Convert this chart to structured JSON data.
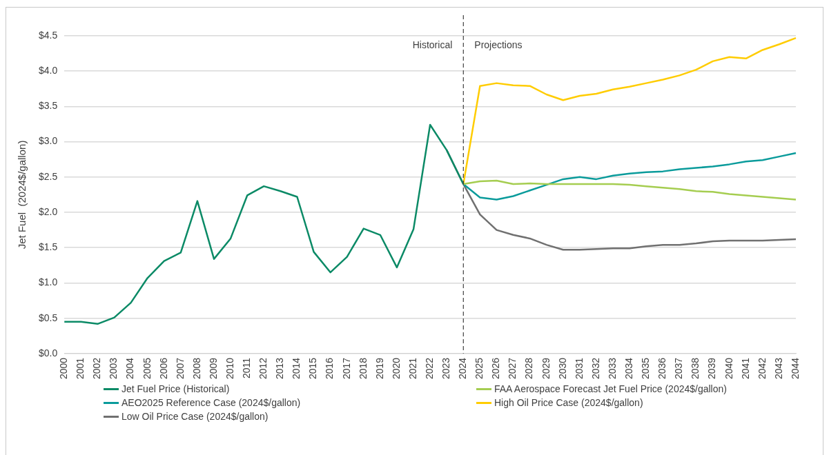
{
  "chart_data": {
    "type": "line",
    "ylabel": "Jet Fuel  (2024$/gallon)",
    "categories": [
      "2000",
      "2001",
      "2002",
      "2003",
      "2004",
      "2005",
      "2006",
      "2007",
      "2008",
      "2009",
      "2010",
      "2011",
      "2012",
      "2013",
      "2014",
      "2015",
      "2016",
      "2017",
      "2018",
      "2019",
      "2020",
      "2021",
      "2022",
      "2023",
      "2024",
      "2025",
      "2026",
      "2027",
      "2028",
      "2029",
      "2030",
      "2031",
      "2032",
      "2033",
      "2034",
      "2035",
      "2036",
      "2037",
      "2038",
      "2039",
      "2040",
      "2041",
      "2042",
      "2043",
      "2044"
    ],
    "series": [
      {
        "name": "Jet Fuel Price (Historical)",
        "color": "#0b8a66",
        "values": [
          0.45,
          0.45,
          0.42,
          0.51,
          0.72,
          1.07,
          1.31,
          1.43,
          2.16,
          1.34,
          1.63,
          2.24,
          2.37,
          2.3,
          2.22,
          1.44,
          1.15,
          1.37,
          1.77,
          1.68,
          1.22,
          1.76,
          3.24,
          2.88,
          2.4,
          null,
          null,
          null,
          null,
          null,
          null,
          null,
          null,
          null,
          null,
          null,
          null,
          null,
          null,
          null,
          null,
          null,
          null,
          null,
          null
        ]
      },
      {
        "name": "FAA Aerospace Forecast Jet Fuel Price (2024$/gallon)",
        "color": "#a5cd50",
        "values": [
          null,
          null,
          null,
          null,
          null,
          null,
          null,
          null,
          null,
          null,
          null,
          null,
          null,
          null,
          null,
          null,
          null,
          null,
          null,
          null,
          null,
          null,
          null,
          null,
          2.4,
          2.44,
          2.45,
          2.4,
          2.41,
          2.4,
          2.4,
          2.4,
          2.4,
          2.4,
          2.39,
          2.37,
          2.35,
          2.33,
          2.3,
          2.29,
          2.26,
          2.24,
          2.22,
          2.2,
          2.18
        ]
      },
      {
        "name": "AEO2025 Reference Case (2024$/gallon)",
        "color": "#0a9b9b",
        "values": [
          null,
          null,
          null,
          null,
          null,
          null,
          null,
          null,
          null,
          null,
          null,
          null,
          null,
          null,
          null,
          null,
          null,
          null,
          null,
          null,
          null,
          null,
          null,
          null,
          2.4,
          2.21,
          2.18,
          2.23,
          2.31,
          2.39,
          2.47,
          2.5,
          2.47,
          2.52,
          2.55,
          2.57,
          2.58,
          2.61,
          2.63,
          2.65,
          2.68,
          2.72,
          2.74,
          2.79,
          2.84
        ]
      },
      {
        "name": "High Oil Price Case (2024$/gallon)",
        "color": "#ffcc00",
        "values": [
          null,
          null,
          null,
          null,
          null,
          null,
          null,
          null,
          null,
          null,
          null,
          null,
          null,
          null,
          null,
          null,
          null,
          null,
          null,
          null,
          null,
          null,
          null,
          null,
          2.4,
          3.79,
          3.83,
          3.8,
          3.79,
          3.67,
          3.59,
          3.65,
          3.68,
          3.74,
          3.78,
          3.83,
          3.88,
          3.94,
          4.02,
          4.14,
          4.2,
          4.18,
          4.3,
          4.38,
          4.47
        ]
      },
      {
        "name": "Low Oil Price Case (2024$/gallon)",
        "color": "#707070",
        "values": [
          null,
          null,
          null,
          null,
          null,
          null,
          null,
          null,
          null,
          null,
          null,
          null,
          null,
          null,
          null,
          null,
          null,
          null,
          null,
          null,
          null,
          null,
          null,
          2.88,
          2.4,
          1.97,
          1.75,
          1.68,
          1.63,
          1.54,
          1.47,
          1.47,
          1.48,
          1.49,
          1.49,
          1.52,
          1.54,
          1.54,
          1.56,
          1.59,
          1.6,
          1.6,
          1.6,
          1.61,
          1.62
        ]
      }
    ],
    "ylim": [
      0,
      4.5
    ],
    "yticks": [
      {
        "value": 0,
        "label": "$0.0"
      },
      {
        "value": 0.5,
        "label": "$0.5"
      },
      {
        "value": 1,
        "label": "$1.0"
      },
      {
        "value": 1.5,
        "label": "$1.5"
      },
      {
        "value": 2,
        "label": "$2.0"
      },
      {
        "value": 2.5,
        "label": "$2.5"
      },
      {
        "value": 3,
        "label": "$3.0"
      },
      {
        "value": 3.5,
        "label": "$3.5"
      },
      {
        "value": 4,
        "label": "$4.0"
      },
      {
        "value": 4.5,
        "label": "$4.5"
      }
    ],
    "ref_lines": [
      {
        "axis": "x",
        "value": "2024",
        "label": null,
        "color": "#404040",
        "line_style": "dashed"
      }
    ],
    "annotations": [
      "Historical",
      "Projections"
    ],
    "grid": "y",
    "legend": "bottom",
    "marker": "none",
    "line_style": "solid"
  }
}
